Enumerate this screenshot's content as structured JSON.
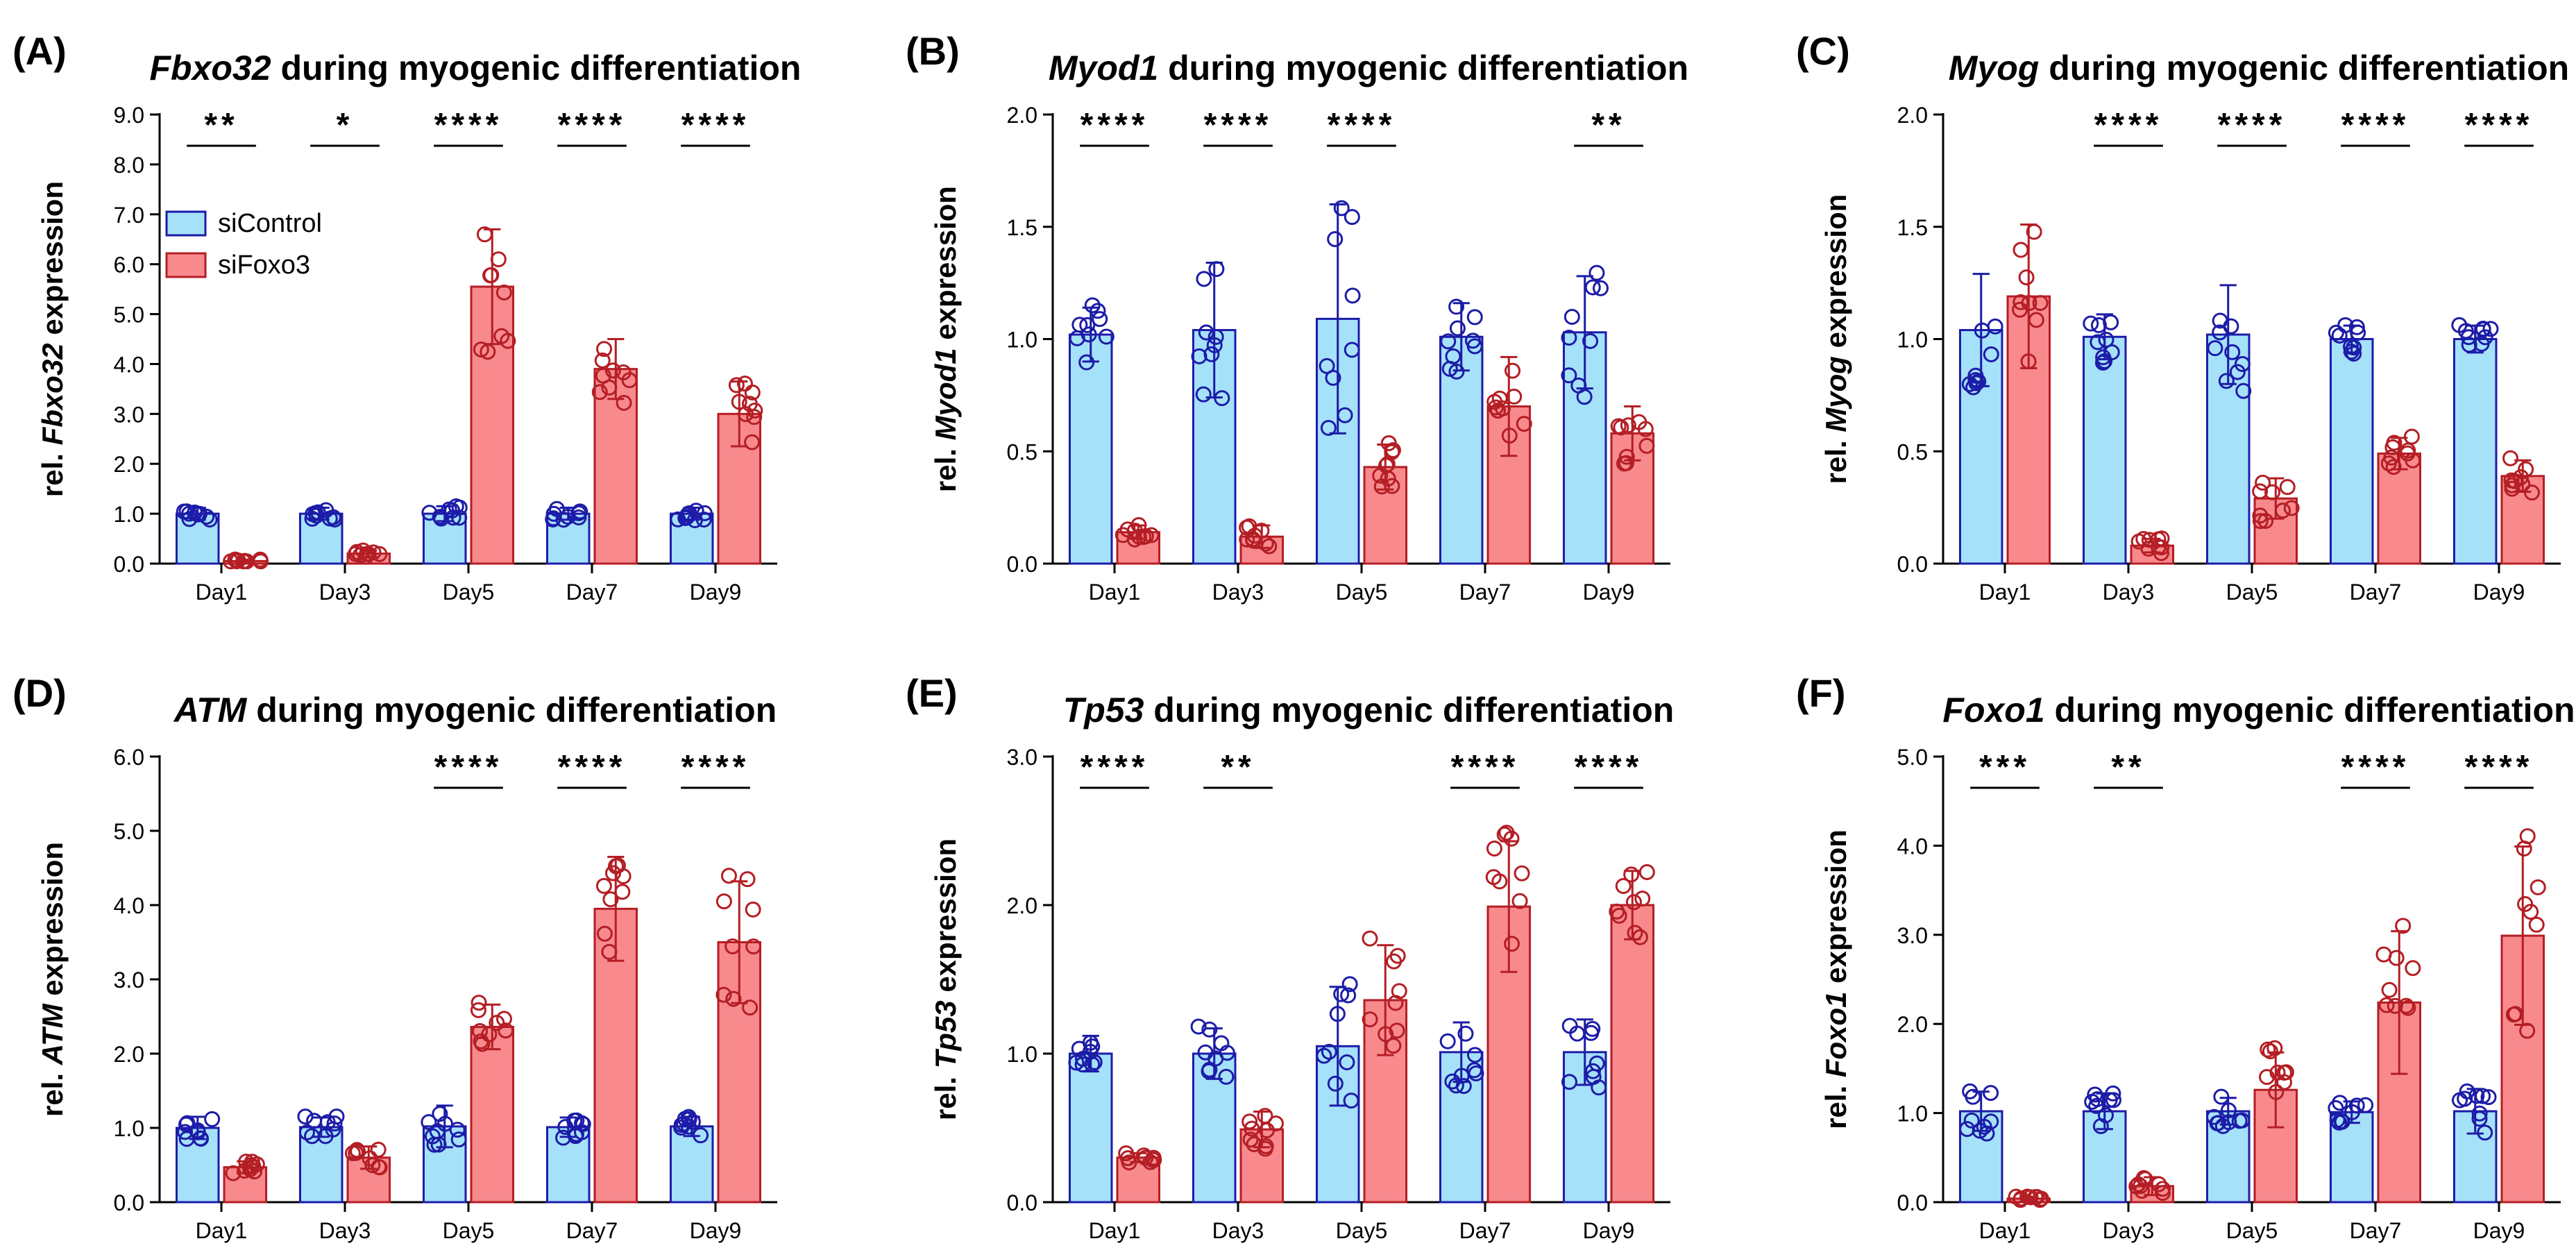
{
  "figure": {
    "legend": {
      "entries": [
        {
          "name": "siControl",
          "fill": "#a6e1fa",
          "stroke": "#1c1ca8"
        },
        {
          "name": "siFoxo3",
          "fill": "#f88a8e",
          "stroke": "#b41e24"
        }
      ]
    },
    "colors": {
      "control_fill": "#a6e1fa",
      "control_stroke": "#1c1ca8",
      "foxo3_fill": "#f88a8e",
      "foxo3_stroke": "#b41e24"
    }
  },
  "chart_data": [
    {
      "panel": "(A)",
      "type": "bar",
      "title_gene": "Fbxo32",
      "title_rest": " during myogenic differentiation",
      "ylabel_pre": "rel. ",
      "ylabel_gene": "Fbxo32",
      "ylabel_post": " expression",
      "categories": [
        "Day1",
        "Day3",
        "Day5",
        "Day7",
        "Day9"
      ],
      "ylim": [
        0,
        9
      ],
      "yticks": [
        "0.0",
        "1.0",
        "2.0",
        "3.0",
        "4.0",
        "5.0",
        "6.0",
        "7.0",
        "8.0",
        "9.0"
      ],
      "has_legend": true,
      "series": [
        {
          "name": "siControl",
          "values": [
            1.0,
            1.0,
            1.0,
            1.0,
            1.0
          ],
          "errors": [
            0.12,
            0.12,
            0.15,
            0.12,
            0.12
          ]
        },
        {
          "name": "siFoxo3",
          "values": [
            0.05,
            0.2,
            5.55,
            3.9,
            3.0
          ],
          "errors": [
            0.03,
            0.06,
            1.15,
            0.6,
            0.65
          ]
        }
      ],
      "significance": [
        "**",
        "*",
        "****",
        "****",
        "****"
      ]
    },
    {
      "panel": "(B)",
      "type": "bar",
      "title_gene": "Myod1",
      "title_rest": " during myogenic differentiation",
      "ylabel_pre": "rel. ",
      "ylabel_gene": "Myod1",
      "ylabel_post": " expression",
      "categories": [
        "Day1",
        "Day3",
        "Day5",
        "Day7",
        "Day9"
      ],
      "ylim": [
        0,
        2
      ],
      "yticks": [
        "0.0",
        "0.5",
        "1.0",
        "1.5",
        "2.0"
      ],
      "has_legend": false,
      "series": [
        {
          "name": "siControl",
          "values": [
            1.02,
            1.04,
            1.09,
            1.01,
            1.03
          ],
          "errors": [
            0.12,
            0.3,
            0.51,
            0.15,
            0.25
          ]
        },
        {
          "name": "siFoxo3",
          "values": [
            0.14,
            0.12,
            0.43,
            0.7,
            0.58
          ],
          "errors": [
            0.03,
            0.05,
            0.1,
            0.22,
            0.12
          ]
        }
      ],
      "significance": [
        "****",
        "****",
        "****",
        "",
        "**"
      ]
    },
    {
      "panel": "(C)",
      "type": "bar",
      "title_gene": "Myog",
      "title_rest": " during myogenic differentiation",
      "ylabel_pre": "rel. ",
      "ylabel_gene": "Myog",
      "ylabel_post": " expression",
      "categories": [
        "Day1",
        "Day3",
        "Day5",
        "Day7",
        "Day9"
      ],
      "ylim": [
        0,
        2
      ],
      "yticks": [
        "0.0",
        "0.5",
        "1.0",
        "1.5",
        "2.0"
      ],
      "has_legend": false,
      "series": [
        {
          "name": "siControl",
          "values": [
            1.04,
            1.01,
            1.02,
            1.0,
            1.0
          ],
          "errors": [
            0.25,
            0.1,
            0.22,
            0.06,
            0.06
          ]
        },
        {
          "name": "siFoxo3",
          "values": [
            1.19,
            0.08,
            0.29,
            0.49,
            0.39
          ],
          "errors": [
            0.32,
            0.03,
            0.09,
            0.07,
            0.07
          ]
        }
      ],
      "significance": [
        "",
        "****",
        "****",
        "****",
        "****"
      ]
    },
    {
      "panel": "(D)",
      "type": "bar",
      "title_gene": "ATM",
      "title_rest": " during myogenic differentiation",
      "ylabel_pre": "rel. ",
      "ylabel_gene": "ATM",
      "ylabel_post": " expression",
      "categories": [
        "Day1",
        "Day3",
        "Day5",
        "Day7",
        "Day9"
      ],
      "ylim": [
        0,
        6
      ],
      "yticks": [
        "0.0",
        "1.0",
        "2.0",
        "3.0",
        "4.0",
        "5.0",
        "6.0"
      ],
      "has_legend": false,
      "series": [
        {
          "name": "siControl",
          "values": [
            1.0,
            1.01,
            1.02,
            1.01,
            1.02
          ],
          "errors": [
            0.15,
            0.13,
            0.28,
            0.13,
            0.13
          ]
        },
        {
          "name": "siFoxo3",
          "values": [
            0.47,
            0.6,
            2.36,
            3.95,
            3.5
          ],
          "errors": [
            0.08,
            0.15,
            0.3,
            0.7,
            0.82
          ]
        }
      ],
      "significance": [
        "",
        "",
        "****",
        "****",
        "****"
      ]
    },
    {
      "panel": "(E)",
      "type": "bar",
      "title_gene": "Tp53",
      "title_rest": " during myogenic differentiation",
      "ylabel_pre": "rel. ",
      "ylabel_gene": "Tp53",
      "ylabel_post": " expression",
      "categories": [
        "Day1",
        "Day3",
        "Day5",
        "Day7",
        "Day9"
      ],
      "ylim": [
        0,
        3
      ],
      "yticks": [
        "0.0",
        "1.0",
        "2.0",
        "3.0"
      ],
      "has_legend": false,
      "series": [
        {
          "name": "siControl",
          "values": [
            1.0,
            1.0,
            1.05,
            1.01,
            1.01
          ],
          "errors": [
            0.12,
            0.17,
            0.4,
            0.2,
            0.22
          ]
        },
        {
          "name": "siFoxo3",
          "values": [
            0.3,
            0.49,
            1.36,
            1.99,
            2.0
          ],
          "errors": [
            0.03,
            0.12,
            0.37,
            0.44,
            0.23
          ]
        }
      ],
      "significance": [
        "****",
        "**",
        "",
        "****",
        "****"
      ]
    },
    {
      "panel": "(F)",
      "type": "bar",
      "title_gene": "Foxo1",
      "title_rest": " during myogenic differentiation",
      "ylabel_pre": "rel. ",
      "ylabel_gene": "Foxo1",
      "ylabel_post": " expression",
      "categories": [
        "Day1",
        "Day3",
        "Day5",
        "Day7",
        "Day9"
      ],
      "ylim": [
        0,
        5
      ],
      "yticks": [
        "0.0",
        "1.0",
        "2.0",
        "3.0",
        "4.0",
        "5.0"
      ],
      "has_legend": false,
      "series": [
        {
          "name": "siControl",
          "values": [
            1.02,
            1.02,
            1.02,
            1.01,
            1.02
          ],
          "errors": [
            0.22,
            0.2,
            0.15,
            0.12,
            0.25
          ]
        },
        {
          "name": "siFoxo3",
          "values": [
            0.04,
            0.18,
            1.26,
            2.24,
            2.99
          ],
          "errors": [
            0.02,
            0.1,
            0.42,
            0.8,
            1.0
          ]
        }
      ],
      "significance": [
        "***",
        "**",
        "",
        "****",
        "****"
      ]
    }
  ]
}
